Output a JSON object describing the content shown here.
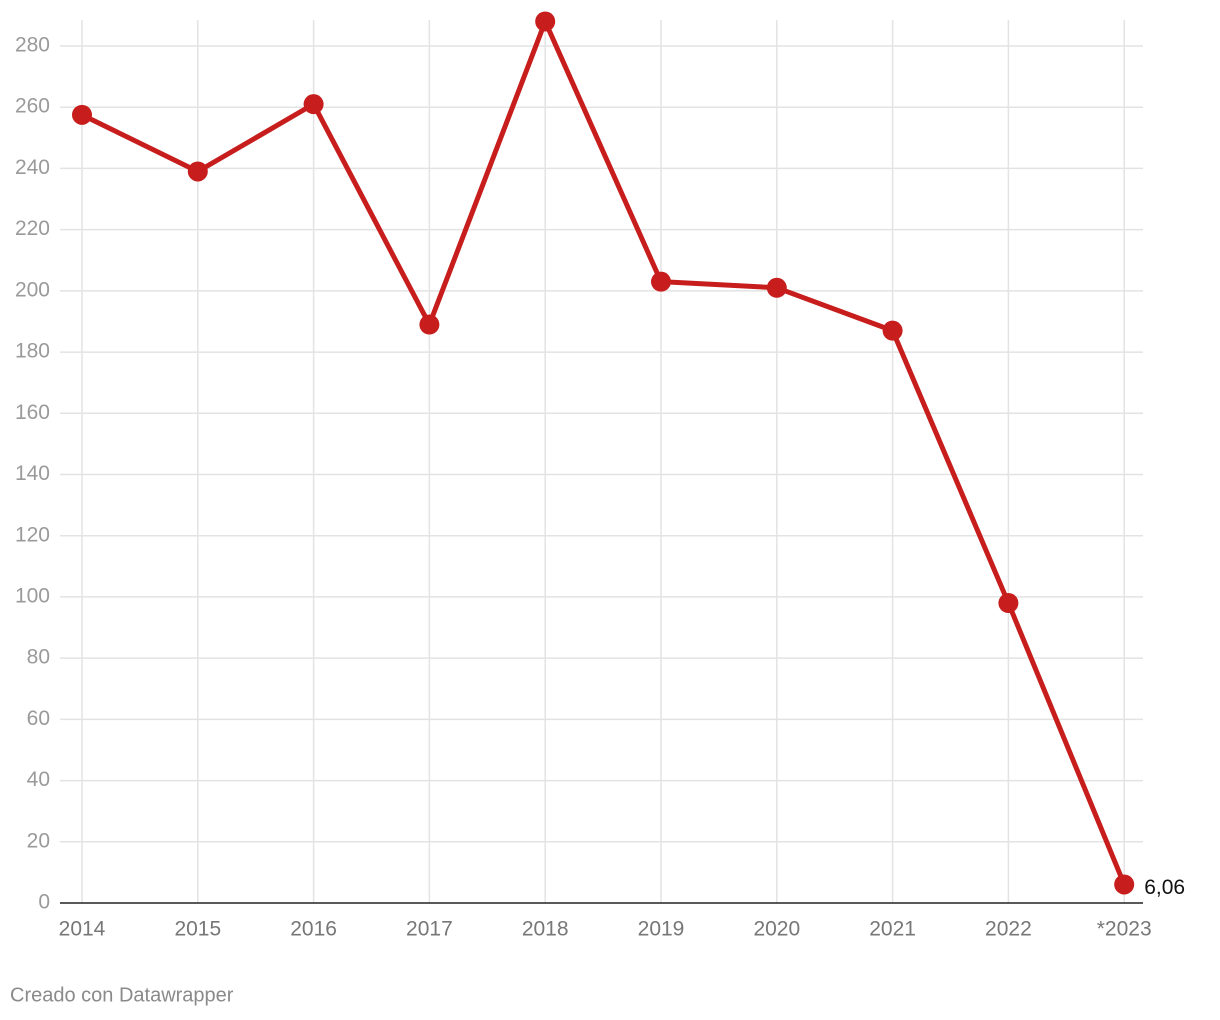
{
  "chart_data": {
    "type": "line",
    "categories": [
      "2014",
      "2015",
      "2016",
      "2017",
      "2018",
      "2019",
      "2020",
      "2021",
      "2022",
      "*2023"
    ],
    "series": [
      {
        "name": null,
        "color": "#c71e1d",
        "values": [
          257.5,
          239,
          261,
          189,
          288,
          203,
          201,
          187,
          98,
          6.06
        ],
        "value_labels": [
          null,
          null,
          null,
          null,
          null,
          null,
          null,
          null,
          null,
          "6,06"
        ]
      }
    ],
    "ylim": [
      0,
      288
    ],
    "yticks": [
      0,
      20,
      40,
      60,
      80,
      100,
      120,
      140,
      160,
      180,
      200,
      220,
      240,
      260,
      280
    ],
    "grid": true,
    "footer": "Creado con Datawrapper"
  }
}
